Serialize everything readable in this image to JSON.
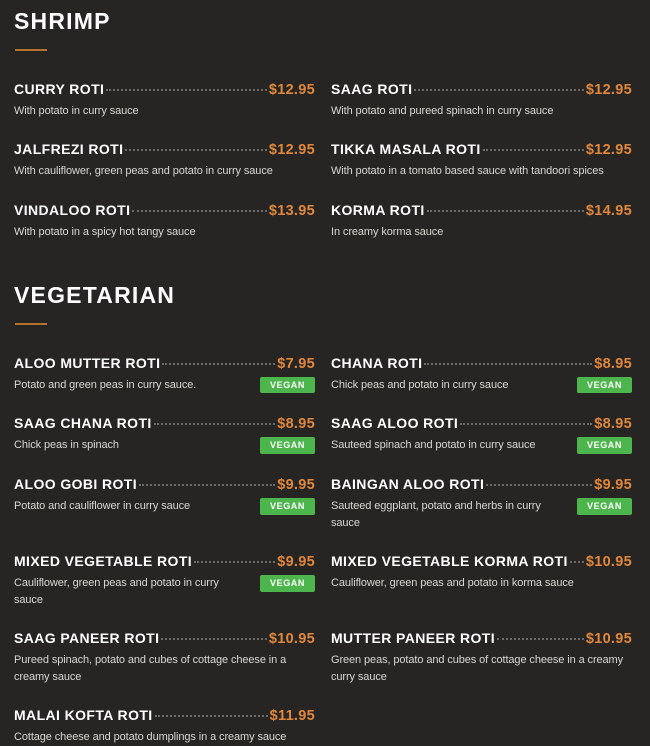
{
  "labels": {
    "vegan": "VEGAN"
  },
  "colors": {
    "bg": "#262523",
    "name": "#ffffff",
    "desc": "#d9d7d3",
    "price": "#e0873c",
    "dots": "#6e6c69",
    "underline": "#b5722f",
    "badge": "#4cb64c"
  },
  "sections": [
    {
      "title": "SHRIMP",
      "items": [
        {
          "name": "CURRY ROTI",
          "price": "$12.95",
          "description": "With potato in curry sauce",
          "vegan": false
        },
        {
          "name": "SAAG ROTI",
          "price": "$12.95",
          "description": "With potato and pureed spinach in curry sauce",
          "vegan": false
        },
        {
          "name": "JALFREZI ROTI",
          "price": "$12.95",
          "description": "With cauliflower, green peas and potato in curry sauce",
          "vegan": false
        },
        {
          "name": "TIKKA MASALA ROTI",
          "price": "$12.95",
          "description": "With potato in a tomato based sauce with tandoori spices",
          "vegan": false
        },
        {
          "name": "VINDALOO ROTI",
          "price": "$13.95",
          "description": "With potato in a spicy hot tangy sauce",
          "vegan": false
        },
        {
          "name": "KORMA ROTI",
          "price": "$14.95",
          "description": "In creamy korma sauce",
          "vegan": false
        }
      ]
    },
    {
      "title": "VEGETARIAN",
      "items": [
        {
          "name": "ALOO MUTTER ROTI",
          "price": "$7.95",
          "description": "Potato and green peas in curry sauce.",
          "vegan": true
        },
        {
          "name": "CHANA ROTI",
          "price": "$8.95",
          "description": "Chick peas and potato in curry sauce",
          "vegan": true
        },
        {
          "name": "SAAG CHANA ROTI",
          "price": "$8.95",
          "description": "Chick peas in spinach",
          "vegan": true
        },
        {
          "name": "SAAG ALOO ROTI",
          "price": "$8.95",
          "description": "Sauteed spinach and potato in curry sauce",
          "vegan": true
        },
        {
          "name": "ALOO GOBI ROTI",
          "price": "$9.95",
          "description": "Potato and cauliflower in curry sauce",
          "vegan": true
        },
        {
          "name": "BAINGAN ALOO ROTI",
          "price": "$9.95",
          "description": "Sauteed eggplant, potato and herbs in curry sauce",
          "vegan": true
        },
        {
          "name": "MIXED VEGETABLE ROTI",
          "price": "$9.95",
          "description": "Cauliflower, green peas and potato in curry sauce",
          "vegan": true
        },
        {
          "name": "MIXED VEGETABLE KORMA ROTI",
          "price": "$10.95",
          "description": "Cauliflower, green peas and potato in korma sauce",
          "vegan": false
        },
        {
          "name": "SAAG PANEER ROTI",
          "price": "$10.95",
          "description": "Pureed spinach, potato and cubes of cottage cheese in a creamy sauce",
          "vegan": false
        },
        {
          "name": "MUTTER PANEER ROTI",
          "price": "$10.95",
          "description": "Green peas, potato and cubes of cottage cheese in a creamy curry sauce",
          "vegan": false
        },
        {
          "name": "MALAI KOFTA ROTI",
          "price": "$11.95",
          "description": "Cottage cheese and potato dumplings in a creamy sauce",
          "vegan": false
        }
      ]
    }
  ]
}
